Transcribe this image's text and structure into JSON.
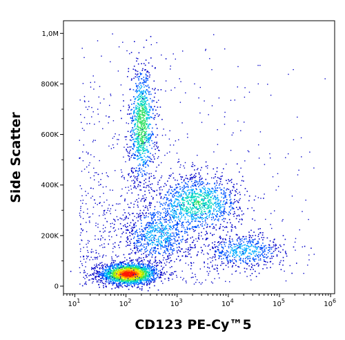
{
  "chart_data": {
    "type": "scatter",
    "title": "",
    "xlabel": "CD123 PE-Cy™5",
    "ylabel": "Side Scatter",
    "x_scale": "log",
    "xlim": [
      6,
      1200000
    ],
    "ylim": [
      -30000,
      1050000
    ],
    "grid": false,
    "x_ticks": [
      {
        "value": 10,
        "base": "10",
        "exp": "1"
      },
      {
        "value": 100,
        "base": "10",
        "exp": "2"
      },
      {
        "value": 1000,
        "base": "10",
        "exp": "3"
      },
      {
        "value": 10000,
        "base": "10",
        "exp": "4"
      },
      {
        "value": 100000,
        "base": "10",
        "exp": "5"
      },
      {
        "value": 1000000,
        "base": "10",
        "exp": "6"
      }
    ],
    "y_ticks": [
      {
        "value": 0,
        "label": "0"
      },
      {
        "value": 200000,
        "label": "200K"
      },
      {
        "value": 400000,
        "label": "400K"
      },
      {
        "value": 600000,
        "label": "600K"
      },
      {
        "value": 800000,
        "label": "800K"
      },
      {
        "value": 1000000,
        "label": "1,0M"
      }
    ],
    "colormap": [
      "#0000c8",
      "#0055ff",
      "#00aaff",
      "#00d6c0",
      "#30e060",
      "#a8e800",
      "#ffe000",
      "#ff8000",
      "#ff1800"
    ],
    "populations": [
      {
        "x_center": 110,
        "y_center": 50000,
        "x_spread_decades": 0.28,
        "y_spread": 22000,
        "peak_density": 1.0
      },
      {
        "x_center": 200,
        "y_center": 640000,
        "x_spread_decades": 0.13,
        "y_spread": 120000,
        "peak_density": 0.55
      },
      {
        "x_center": 2500,
        "y_center": 330000,
        "x_spread_decades": 0.42,
        "y_spread": 55000,
        "peak_density": 0.45
      },
      {
        "x_center": 20000,
        "y_center": 140000,
        "x_spread_decades": 0.4,
        "y_spread": 35000,
        "peak_density": 0.3
      },
      {
        "x_center": 400,
        "y_center": 200000,
        "x_spread_decades": 0.35,
        "y_spread": 60000,
        "peak_density": 0.28
      }
    ]
  }
}
